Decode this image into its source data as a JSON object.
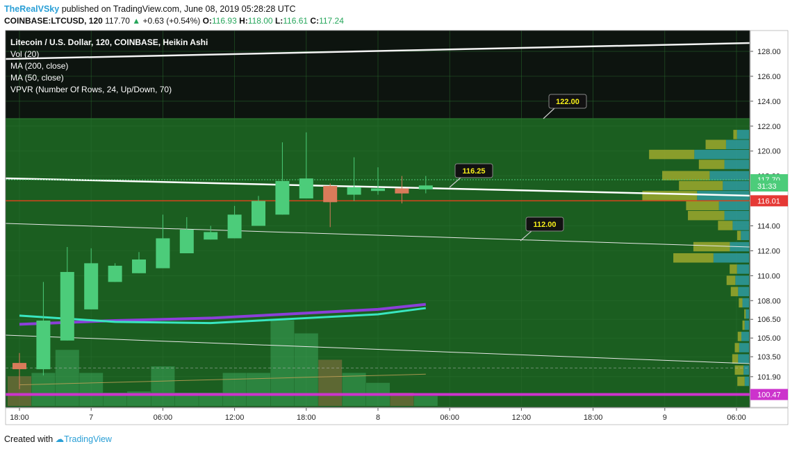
{
  "header": {
    "author": "TheRealVSky",
    "published_text": "published on TradingView.com, June 08, 2019 05:28:28 UTC",
    "symbol": "COINBASE:LTCUSD, 120",
    "last": "117.70",
    "change_arrow": "▲",
    "change": "+0.63 (+0.54%)",
    "o_label": "O:",
    "o": "116.93",
    "h_label": "H:",
    "h": "118.00",
    "l_label": "L:",
    "l": "116.61",
    "c_label": "C:",
    "c": "117.24"
  },
  "legend": {
    "title": "Litecoin / U.S. Dollar, 120, COINBASE, Heikin Ashi",
    "vol": "Vol (20)",
    "ma200": "MA (200, close)",
    "ma50": "MA (50, close)",
    "vpvr": "VPVR (Number Of Rows, 24, Up/Down, 70)"
  },
  "footer": {
    "created_with": "Created with",
    "brand": "TradingView"
  },
  "colors": {
    "up": "#4ccc7a",
    "down": "#d97b5a",
    "chart_bg": "#1b5e20",
    "chart_bg_top": "#0d140f",
    "magenta": "#cc33cc",
    "ma_purple": "#8b3fd9",
    "ma_cyan": "#39e6c0"
  },
  "chart_data": {
    "type": "candlestick",
    "price_axis_ticks": [
      "128.00",
      "126.00",
      "124.00",
      "122.00",
      "120.00",
      "118.00",
      "116.00",
      "114.00",
      "112.00",
      "110.00",
      "108.00",
      "106.50",
      "105.00",
      "103.50",
      "101.90"
    ],
    "price_tags": [
      {
        "label": "117.70",
        "value": 117.7,
        "color": "#4ccc7a"
      },
      {
        "label": "31:33",
        "value": 117.2,
        "color": "#4ccc7a"
      },
      {
        "label": "116.01",
        "value": 116.01,
        "color": "#e53935"
      },
      {
        "label": "100.47",
        "value": 100.47,
        "color": "#cc33cc"
      }
    ],
    "time_axis_ticks": [
      {
        "label": "18:00",
        "t": 0
      },
      {
        "label": "7",
        "t": 3
      },
      {
        "label": "06:00",
        "t": 6
      },
      {
        "label": "12:00",
        "t": 9
      },
      {
        "label": "18:00",
        "t": 12
      },
      {
        "label": "8",
        "t": 15
      },
      {
        "label": "06:00",
        "t": 18
      },
      {
        "label": "12:00",
        "t": 21
      },
      {
        "label": "18:00",
        "t": 24
      },
      {
        "label": "9",
        "t": 27
      },
      {
        "label": "06:00",
        "t": 30
      }
    ],
    "candles": [
      {
        "t": 0,
        "o": 103.0,
        "h": 103.8,
        "l": 100.9,
        "c": 102.5
      },
      {
        "t": 1,
        "o": 102.5,
        "h": 109.5,
        "l": 102.0,
        "c": 106.4
      },
      {
        "t": 2,
        "o": 104.8,
        "h": 112.3,
        "l": 104.8,
        "c": 110.3
      },
      {
        "t": 3,
        "o": 107.3,
        "h": 112.2,
        "l": 107.3,
        "c": 111.0
      },
      {
        "t": 4,
        "o": 109.5,
        "h": 111.0,
        "l": 109.5,
        "c": 110.8
      },
      {
        "t": 5,
        "o": 110.2,
        "h": 111.9,
        "l": 110.2,
        "c": 111.3
      },
      {
        "t": 6,
        "o": 110.6,
        "h": 114.9,
        "l": 110.6,
        "c": 113.0
      },
      {
        "t": 7,
        "o": 111.8,
        "h": 114.7,
        "l": 111.8,
        "c": 113.7
      },
      {
        "t": 8,
        "o": 112.9,
        "h": 114.0,
        "l": 112.9,
        "c": 113.5
      },
      {
        "t": 9,
        "o": 113.0,
        "h": 115.6,
        "l": 113.0,
        "c": 114.9
      },
      {
        "t": 10,
        "o": 114.0,
        "h": 116.4,
        "l": 114.0,
        "c": 116.0
      },
      {
        "t": 11,
        "o": 114.9,
        "h": 120.7,
        "l": 114.9,
        "c": 117.6
      },
      {
        "t": 12,
        "o": 116.2,
        "h": 121.5,
        "l": 116.2,
        "c": 117.8
      },
      {
        "t": 13,
        "o": 117.2,
        "h": 117.4,
        "l": 113.9,
        "c": 115.9
      },
      {
        "t": 14,
        "o": 116.5,
        "h": 119.5,
        "l": 116.0,
        "c": 117.1
      },
      {
        "t": 15,
        "o": 116.8,
        "h": 118.7,
        "l": 116.5,
        "c": 117.0
      },
      {
        "t": 16,
        "o": 117.0,
        "h": 118.0,
        "l": 115.8,
        "c": 116.6
      },
      {
        "t": 17,
        "o": 116.93,
        "h": 118.0,
        "l": 116.61,
        "c": 117.24
      }
    ],
    "ma200": [
      [
        0,
        106.1
      ],
      [
        4,
        106.4
      ],
      [
        8,
        106.6
      ],
      [
        12,
        107.0
      ],
      [
        15,
        107.3
      ],
      [
        17,
        107.7
      ]
    ],
    "ma50": [
      [
        0,
        106.8
      ],
      [
        4,
        106.3
      ],
      [
        8,
        106.2
      ],
      [
        12,
        106.6
      ],
      [
        15,
        106.9
      ],
      [
        17,
        107.4
      ]
    ],
    "volume": [
      {
        "t": 0,
        "v": 0.45,
        "up": false
      },
      {
        "t": 1,
        "v": 0.5,
        "up": true
      },
      {
        "t": 2,
        "v": 0.85,
        "up": true
      },
      {
        "t": 3,
        "v": 0.5,
        "up": true
      },
      {
        "t": 4,
        "v": 0.2,
        "up": true
      },
      {
        "t": 5,
        "v": 0.22,
        "up": true
      },
      {
        "t": 6,
        "v": 0.6,
        "up": true
      },
      {
        "t": 7,
        "v": 0.2,
        "up": true
      },
      {
        "t": 8,
        "v": 0.2,
        "up": true
      },
      {
        "t": 9,
        "v": 0.5,
        "up": true
      },
      {
        "t": 10,
        "v": 0.5,
        "up": true
      },
      {
        "t": 11,
        "v": 1.3,
        "up": true
      },
      {
        "t": 12,
        "v": 1.1,
        "up": true
      },
      {
        "t": 13,
        "v": 0.7,
        "up": false
      },
      {
        "t": 14,
        "v": 0.5,
        "up": true
      },
      {
        "t": 15,
        "v": 0.35,
        "up": true
      },
      {
        "t": 16,
        "v": 0.2,
        "up": false
      },
      {
        "t": 17,
        "v": 0.15,
        "up": true
      }
    ],
    "annotations": [
      {
        "label": "122.00",
        "value": 122.0
      },
      {
        "label": "116.25",
        "value": 116.25
      },
      {
        "label": "112.00",
        "value": 112.0
      }
    ],
    "vpvr_rows": [
      {
        "price": 121.3,
        "up": 0.05,
        "down": 0.22
      },
      {
        "price": 120.5,
        "up": 0.28,
        "down": 0.42
      },
      {
        "price": 119.7,
        "up": 0.62,
        "down": 1.0
      },
      {
        "price": 118.9,
        "up": 0.35,
        "down": 0.45
      },
      {
        "price": 118.0,
        "up": 0.65,
        "down": 0.72
      },
      {
        "price": 117.2,
        "up": 0.6,
        "down": 0.48
      },
      {
        "price": 116.4,
        "up": 0.75,
        "down": 0.95
      },
      {
        "price": 115.6,
        "up": 0.45,
        "down": 0.55
      },
      {
        "price": 114.8,
        "up": 0.5,
        "down": 0.45
      },
      {
        "price": 114.0,
        "up": 0.2,
        "down": 0.3
      },
      {
        "price": 113.2,
        "up": 0.05,
        "down": 0.15
      },
      {
        "price": 112.3,
        "up": 0.5,
        "down": 0.35
      },
      {
        "price": 111.4,
        "up": 0.55,
        "down": 0.65
      },
      {
        "price": 110.5,
        "up": 0.1,
        "down": 0.22
      },
      {
        "price": 109.6,
        "up": 0.12,
        "down": 0.25
      },
      {
        "price": 108.7,
        "up": 0.1,
        "down": 0.2
      },
      {
        "price": 107.8,
        "up": 0.05,
        "down": 0.12
      },
      {
        "price": 106.9,
        "up": 0.02,
        "down": 0.06
      },
      {
        "price": 106.0,
        "up": 0.03,
        "down": 0.08
      },
      {
        "price": 105.1,
        "up": 0.05,
        "down": 0.14
      },
      {
        "price": 104.2,
        "up": 0.06,
        "down": 0.18
      },
      {
        "price": 103.3,
        "up": 0.08,
        "down": 0.2
      },
      {
        "price": 102.4,
        "up": 0.12,
        "down": 0.1
      },
      {
        "price": 101.5,
        "up": 0.1,
        "down": 0.08
      }
    ]
  }
}
